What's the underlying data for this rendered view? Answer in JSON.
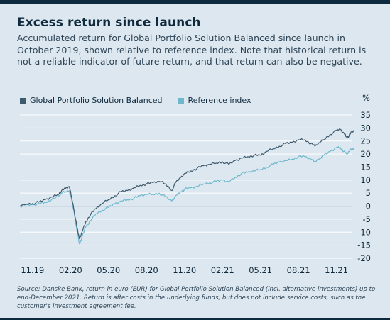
{
  "title": "Excess return since launch",
  "subtitle": "Accumulated return for Global Portfolio Solution Balanced since launch in October 2019, shown relative to reference index. Note that historical return is not a reliable indicator of future return, and that return can also be negative.",
  "unit_label": "%",
  "source": "Source: Danske Bank, return in euro (EUR) for Global Portfolio Solution Balanced (incl. alternative investments) up to end-December 2021. Return is after costs in the underlying funds, but does not include service costs, such as the customer's investment agreement fee.",
  "colors": {
    "fund": "#3e5a6e",
    "reference": "#6db8cd",
    "grid": "#ffffff",
    "zero": "#6f8592"
  },
  "chart_data": {
    "type": "line",
    "ylim": [
      -20,
      35
    ],
    "xlim": [
      0,
      26.2
    ],
    "x_tick_labels": [
      "11.19",
      "02.20",
      "05.20",
      "08.20",
      "11.20",
      "02.21",
      "05.21",
      "08.21",
      "11.21"
    ],
    "x_tick_positions": [
      1,
      4,
      7,
      10,
      13,
      16,
      19,
      22,
      25
    ],
    "y_ticks": [
      35,
      30,
      25,
      20,
      15,
      10,
      5,
      0,
      -5,
      -10,
      -15,
      -20
    ],
    "grid": true,
    "legend_position": "top-left",
    "series": [
      {
        "name": "Global Portfolio Solution Balanced",
        "points": [
          [
            0,
            0
          ],
          [
            0.5,
            0.8
          ],
          [
            1,
            1
          ],
          [
            1.5,
            1.5
          ],
          [
            2,
            2.5
          ],
          [
            2.5,
            3.5
          ],
          [
            3,
            4.5
          ],
          [
            3.3,
            6
          ],
          [
            3.6,
            6.8
          ],
          [
            3.9,
            7.5
          ],
          [
            4.1,
            3
          ],
          [
            4.3,
            -2
          ],
          [
            4.5,
            -8
          ],
          [
            4.7,
            -12.5
          ],
          [
            4.9,
            -10
          ],
          [
            5.2,
            -6
          ],
          [
            5.6,
            -3
          ],
          [
            6,
            -1
          ],
          [
            6.5,
            1
          ],
          [
            7,
            2.5
          ],
          [
            7.5,
            4
          ],
          [
            8,
            5.5
          ],
          [
            8.5,
            6
          ],
          [
            9,
            7
          ],
          [
            9.5,
            8
          ],
          [
            10,
            8.5
          ],
          [
            10.5,
            9
          ],
          [
            11,
            9.5
          ],
          [
            11.5,
            8.5
          ],
          [
            12,
            6
          ],
          [
            12.3,
            9
          ],
          [
            12.7,
            11
          ],
          [
            13,
            12.5
          ],
          [
            13.5,
            13.5
          ],
          [
            14,
            14.5
          ],
          [
            14.5,
            15.5
          ],
          [
            15,
            16
          ],
          [
            15.5,
            16.5
          ],
          [
            16,
            17
          ],
          [
            16.5,
            16
          ],
          [
            17,
            17.5
          ],
          [
            17.5,
            18.5
          ],
          [
            18,
            19
          ],
          [
            18.5,
            19.5
          ],
          [
            19,
            19.5
          ],
          [
            19.5,
            21
          ],
          [
            20,
            22
          ],
          [
            20.5,
            23
          ],
          [
            21,
            24
          ],
          [
            21.5,
            24.5
          ],
          [
            22,
            25.5
          ],
          [
            22.5,
            25.5
          ],
          [
            23,
            24
          ],
          [
            23.3,
            23
          ],
          [
            23.7,
            24.5
          ],
          [
            24,
            25.5
          ],
          [
            24.5,
            27.5
          ],
          [
            25,
            29
          ],
          [
            25.3,
            29.5
          ],
          [
            25.6,
            28
          ],
          [
            25.8,
            26.5
          ],
          [
            26,
            27
          ],
          [
            26.2,
            28.5
          ],
          [
            26.4,
            29
          ]
        ]
      },
      {
        "name": "Reference index",
        "points": [
          [
            0,
            0
          ],
          [
            0.5,
            0.5
          ],
          [
            1,
            0.5
          ],
          [
            1.5,
            1
          ],
          [
            2,
            1.5
          ],
          [
            2.5,
            2.5
          ],
          [
            3,
            3.5
          ],
          [
            3.3,
            5
          ],
          [
            3.6,
            5.5
          ],
          [
            3.9,
            6
          ],
          [
            4.1,
            2
          ],
          [
            4.3,
            -3
          ],
          [
            4.5,
            -9
          ],
          [
            4.7,
            -14.5
          ],
          [
            4.9,
            -12
          ],
          [
            5.2,
            -8
          ],
          [
            5.6,
            -5.5
          ],
          [
            6,
            -3
          ],
          [
            6.5,
            -1.5
          ],
          [
            7,
            -0.5
          ],
          [
            7.5,
            1
          ],
          [
            8,
            2
          ],
          [
            8.5,
            2.5
          ],
          [
            9,
            3
          ],
          [
            9.5,
            4
          ],
          [
            10,
            4.5
          ],
          [
            10.5,
            4.5
          ],
          [
            11,
            5
          ],
          [
            11.5,
            3.5
          ],
          [
            12,
            2
          ],
          [
            12.3,
            4
          ],
          [
            12.7,
            5.5
          ],
          [
            13,
            6.5
          ],
          [
            13.5,
            7
          ],
          [
            14,
            7.5
          ],
          [
            14.5,
            8.5
          ],
          [
            15,
            9
          ],
          [
            15.5,
            9.5
          ],
          [
            16,
            10
          ],
          [
            16.5,
            9.5
          ],
          [
            17,
            11
          ],
          [
            17.5,
            12.5
          ],
          [
            18,
            13
          ],
          [
            18.5,
            13.5
          ],
          [
            19,
            14
          ],
          [
            19.5,
            15
          ],
          [
            20,
            16
          ],
          [
            20.5,
            17
          ],
          [
            21,
            17.5
          ],
          [
            21.5,
            18
          ],
          [
            22,
            19
          ],
          [
            22.5,
            19
          ],
          [
            23,
            18
          ],
          [
            23.3,
            17
          ],
          [
            23.7,
            18.5
          ],
          [
            24,
            19.5
          ],
          [
            24.5,
            21
          ],
          [
            25,
            22.5
          ],
          [
            25.3,
            22.5
          ],
          [
            25.6,
            21
          ],
          [
            25.8,
            20
          ],
          [
            26,
            21
          ],
          [
            26.2,
            22
          ],
          [
            26.4,
            22
          ]
        ]
      }
    ]
  }
}
